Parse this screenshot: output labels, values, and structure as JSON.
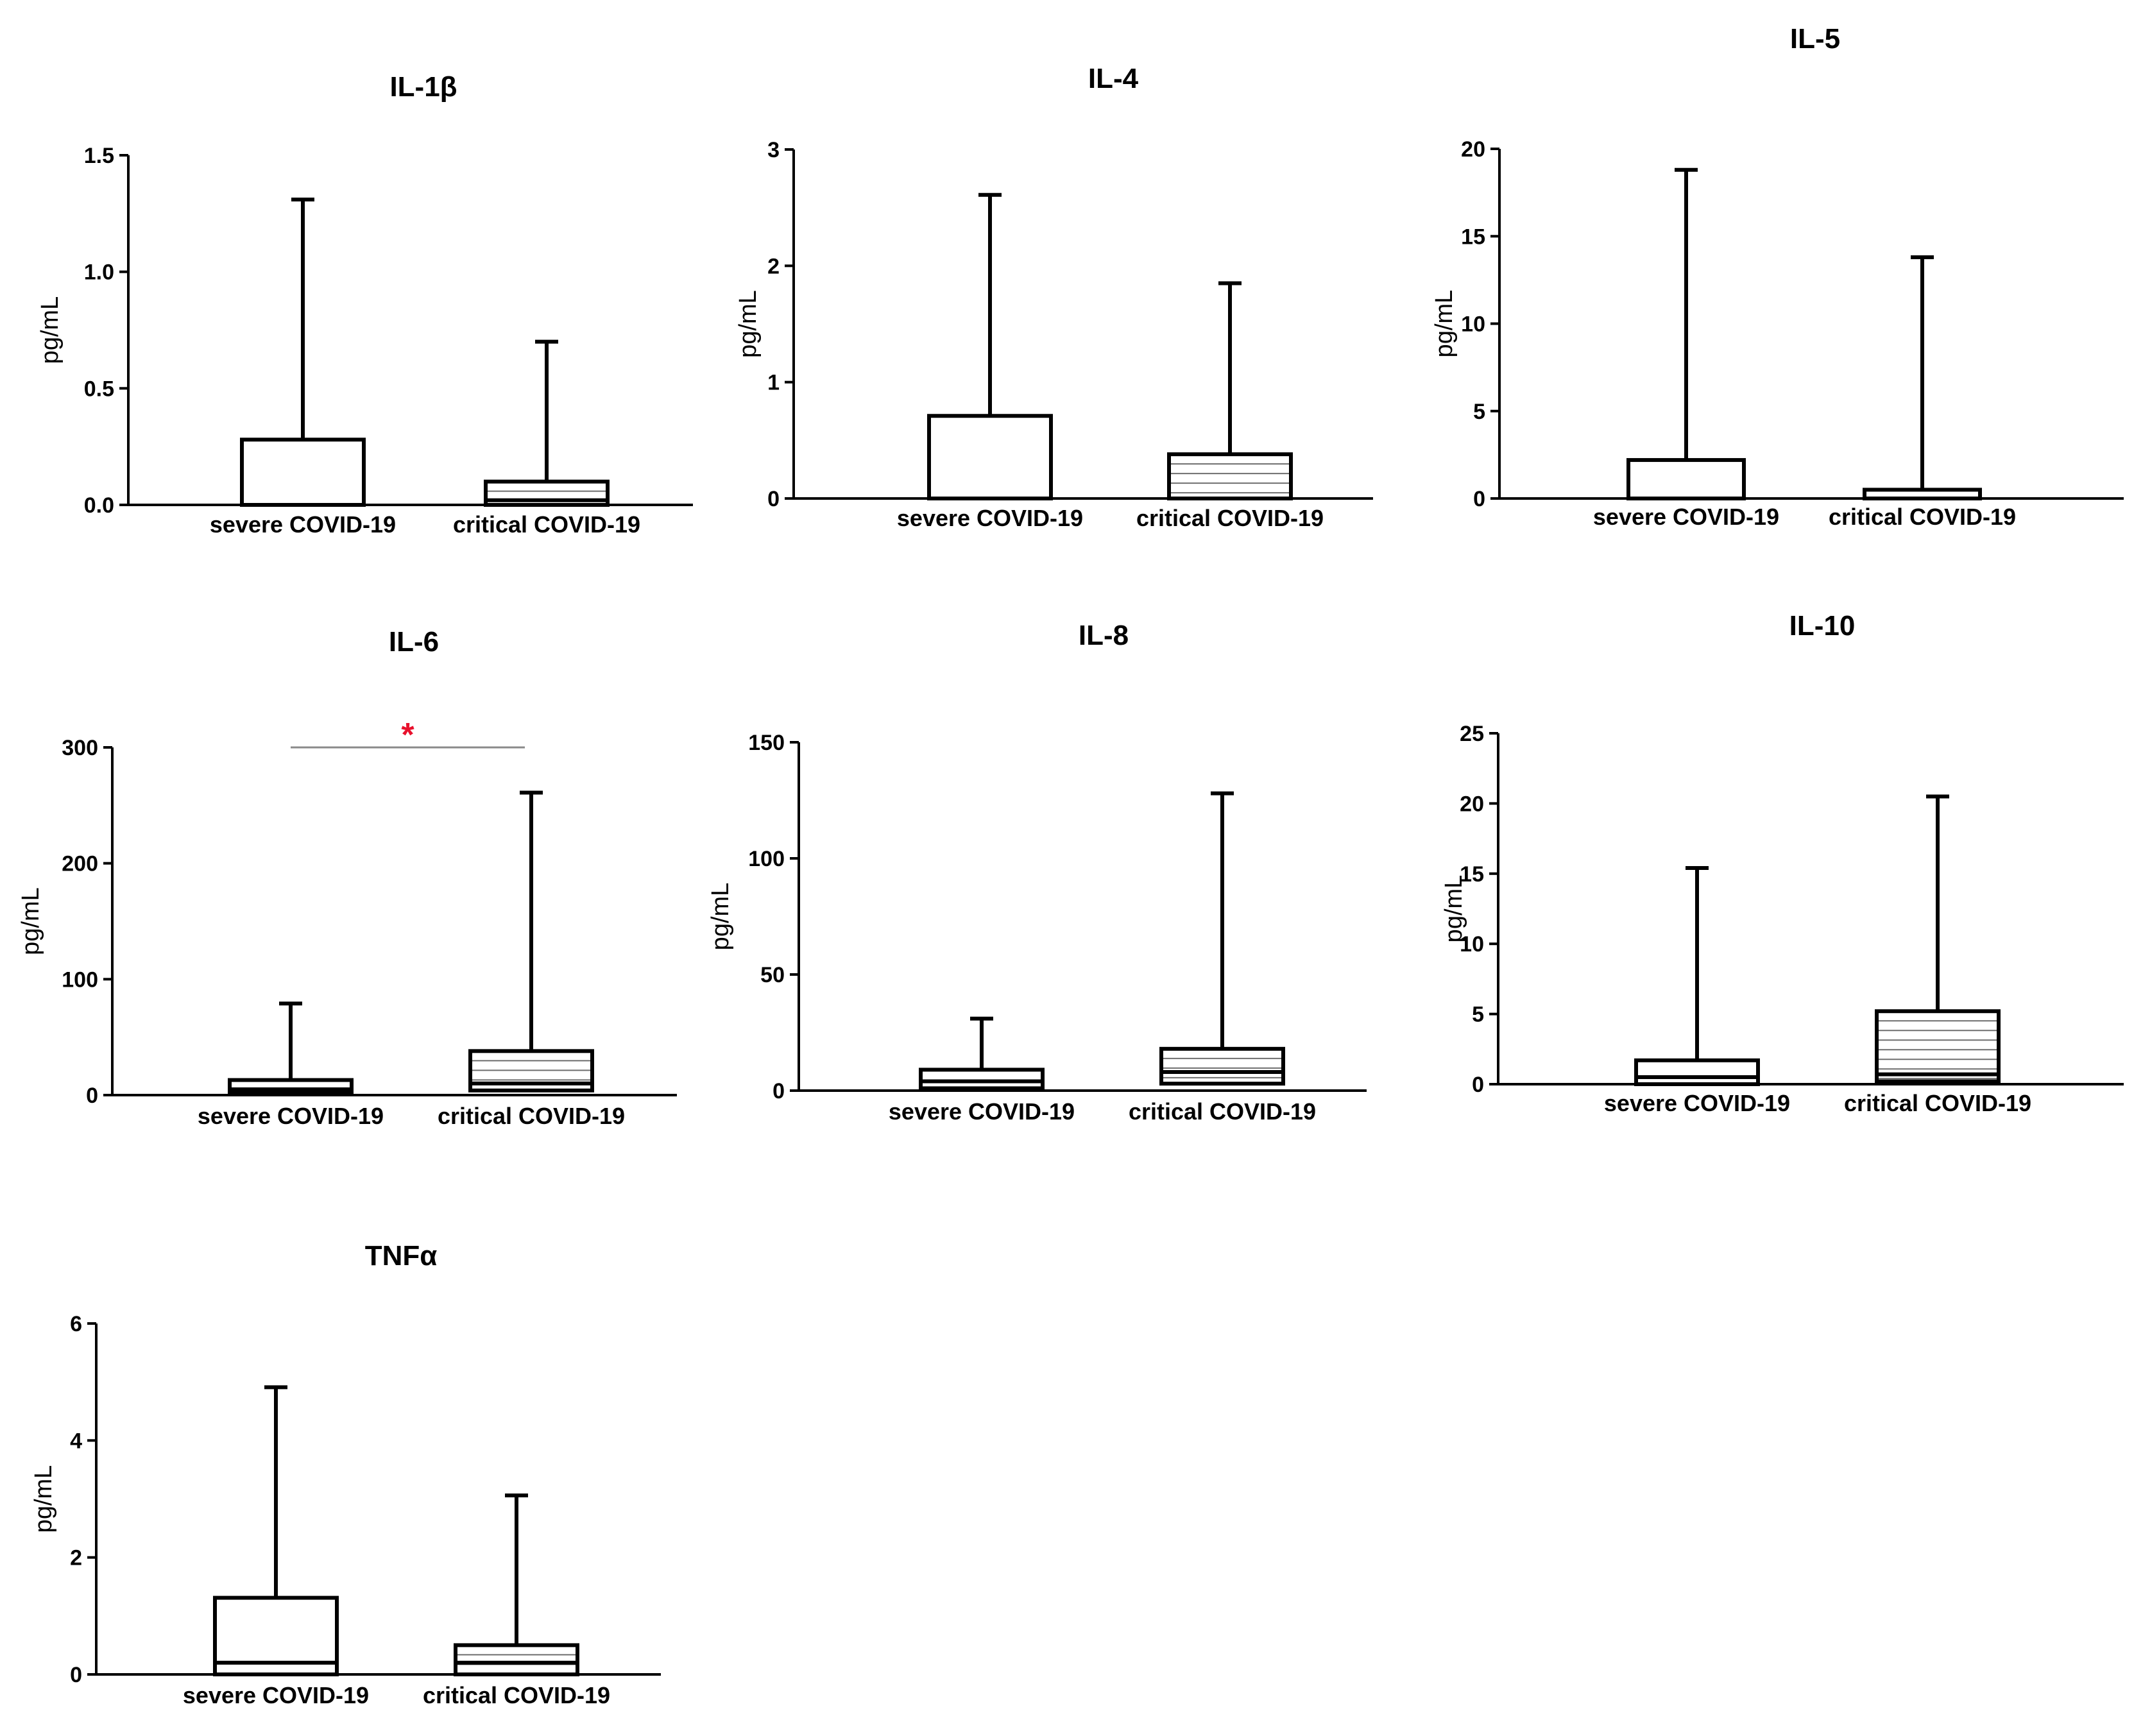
{
  "figure": {
    "colors": {
      "line": "#000000",
      "hatch": "#6e6e6e",
      "significance_bar": "#8a8a8a",
      "significance_mark": "#e8112d"
    }
  },
  "chart_data": [
    {
      "type": "box",
      "title": "IL-1β",
      "ylabel": "pg/mL",
      "ylim": [
        0,
        1.5
      ],
      "yticks": [
        "0.0",
        "0.5",
        "1.0",
        "1.5"
      ],
      "categories": [
        "severe COVID-19",
        "critical COVID-19"
      ],
      "series": [
        {
          "name": "severe COVID-19",
          "min": 0,
          "q1": 0,
          "median": 0,
          "q3": 0.28,
          "max": 1.31,
          "pattern": "none"
        },
        {
          "name": "critical COVID-19",
          "min": 0,
          "q1": 0,
          "median": 0.02,
          "q3": 0.1,
          "max": 0.7,
          "pattern": "hatched"
        }
      ]
    },
    {
      "type": "box",
      "title": "IL-4",
      "ylabel": "pg/mL",
      "ylim": [
        0,
        3
      ],
      "yticks": [
        "0",
        "1",
        "2",
        "3"
      ],
      "categories": [
        "severe COVID-19",
        "critical COVID-19"
      ],
      "series": [
        {
          "name": "severe COVID-19",
          "min": 0,
          "q1": 0,
          "median": 0,
          "q3": 0.71,
          "max": 2.61,
          "pattern": "none"
        },
        {
          "name": "critical COVID-19",
          "min": 0,
          "q1": 0,
          "median": 0,
          "q3": 0.38,
          "max": 1.85,
          "pattern": "hatched"
        }
      ]
    },
    {
      "type": "box",
      "title": "IL-5",
      "ylabel": "pg/mL",
      "ylim": [
        0,
        20
      ],
      "yticks": [
        "0",
        "5",
        "10",
        "15",
        "20"
      ],
      "categories": [
        "severe COVID-19",
        "critical COVID-19"
      ],
      "series": [
        {
          "name": "severe COVID-19",
          "min": 0,
          "q1": 0,
          "median": 0,
          "q3": 2.2,
          "max": 18.8,
          "pattern": "none"
        },
        {
          "name": "critical COVID-19",
          "min": 0,
          "q1": 0,
          "median": 0,
          "q3": 0.5,
          "max": 13.8,
          "pattern": "hatched"
        }
      ]
    },
    {
      "type": "box",
      "title": "IL-6",
      "ylabel": "pg/mL",
      "ylim": [
        0,
        300
      ],
      "yticks": [
        "0",
        "100",
        "200",
        "300"
      ],
      "categories": [
        "severe COVID-19",
        "critical COVID-19"
      ],
      "series": [
        {
          "name": "severe COVID-19",
          "min": 0,
          "q1": 2,
          "median": 5,
          "q3": 13,
          "max": 79,
          "pattern": "none"
        },
        {
          "name": "critical COVID-19",
          "min": 0,
          "q1": 4,
          "median": 10,
          "q3": 38,
          "max": 261,
          "pattern": "hatched"
        }
      ],
      "significance": {
        "label": "*",
        "y": 300
      }
    },
    {
      "type": "box",
      "title": "IL-8",
      "ylabel": "pg/mL",
      "ylim": [
        0,
        150
      ],
      "yticks": [
        "0",
        "50",
        "100",
        "150"
      ],
      "categories": [
        "severe COVID-19",
        "critical COVID-19"
      ],
      "series": [
        {
          "name": "severe COVID-19",
          "min": 0,
          "q1": 1,
          "median": 4,
          "q3": 9,
          "max": 31,
          "pattern": "none"
        },
        {
          "name": "critical COVID-19",
          "min": 0,
          "q1": 3,
          "median": 8,
          "q3": 18,
          "max": 128,
          "pattern": "hatched"
        }
      ]
    },
    {
      "type": "box",
      "title": "IL-10",
      "ylabel": "pg/mL",
      "ylim": [
        0,
        25
      ],
      "yticks": [
        "0",
        "5",
        "10",
        "15",
        "20",
        "25"
      ],
      "categories": [
        "severe COVID-19",
        "critical COVID-19"
      ],
      "series": [
        {
          "name": "severe COVID-19",
          "min": 0,
          "q1": 0,
          "median": 0.5,
          "q3": 1.7,
          "max": 15.4,
          "pattern": "none"
        },
        {
          "name": "critical COVID-19",
          "min": 0,
          "q1": 0.2,
          "median": 0.7,
          "q3": 5.2,
          "max": 20.5,
          "pattern": "hatched"
        }
      ]
    },
    {
      "type": "box",
      "title": "TNFα",
      "ylabel": "pg/mL",
      "ylim": [
        0,
        6
      ],
      "yticks": [
        "0",
        "2",
        "4",
        "6"
      ],
      "categories": [
        "severe COVID-19",
        "critical COVID-19"
      ],
      "series": [
        {
          "name": "severe COVID-19",
          "min": 0,
          "q1": 0,
          "median": 0.2,
          "q3": 1.31,
          "max": 4.91,
          "pattern": "none"
        },
        {
          "name": "critical COVID-19",
          "min": 0,
          "q1": 0,
          "median": 0.2,
          "q3": 0.5,
          "max": 3.06,
          "pattern": "hatched"
        }
      ]
    }
  ]
}
